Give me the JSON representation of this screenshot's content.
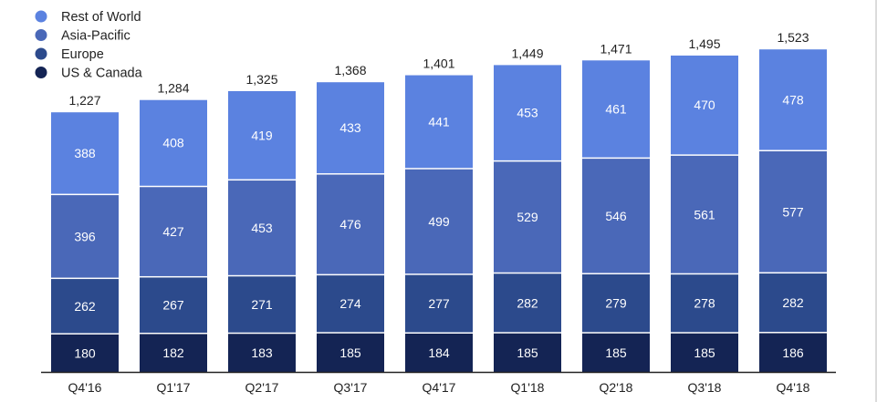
{
  "chart_data": {
    "type": "bar",
    "stacked": true,
    "categories": [
      "Q4'16",
      "Q1'17",
      "Q2'17",
      "Q3'17",
      "Q4'17",
      "Q1'18",
      "Q2'18",
      "Q3'18",
      "Q4'18"
    ],
    "series": [
      {
        "name": "US & Canada",
        "color": "#142454",
        "values": [
          180,
          182,
          183,
          185,
          184,
          185,
          185,
          185,
          186
        ]
      },
      {
        "name": "Europe",
        "color": "#2c4a8c",
        "values": [
          262,
          267,
          271,
          274,
          277,
          282,
          279,
          278,
          282
        ]
      },
      {
        "name": "Asia-Pacific",
        "color": "#4a68b8",
        "values": [
          396,
          427,
          453,
          476,
          499,
          529,
          546,
          561,
          577
        ]
      },
      {
        "name": "Rest of World",
        "color": "#5b82e0",
        "values": [
          388,
          408,
          419,
          433,
          441,
          453,
          461,
          470,
          478
        ]
      }
    ],
    "totals": [
      "1,227",
      "1,284",
      "1,325",
      "1,368",
      "1,401",
      "1,449",
      "1,471",
      "1,495",
      "1,523"
    ],
    "legend_order": [
      "Rest of World",
      "Asia-Pacific",
      "Europe",
      "US & Canada"
    ],
    "legend_position": "top-left",
    "label_color": "#ffffff",
    "axis_color": "#222222",
    "text_color": "#222222",
    "grid": false
  }
}
